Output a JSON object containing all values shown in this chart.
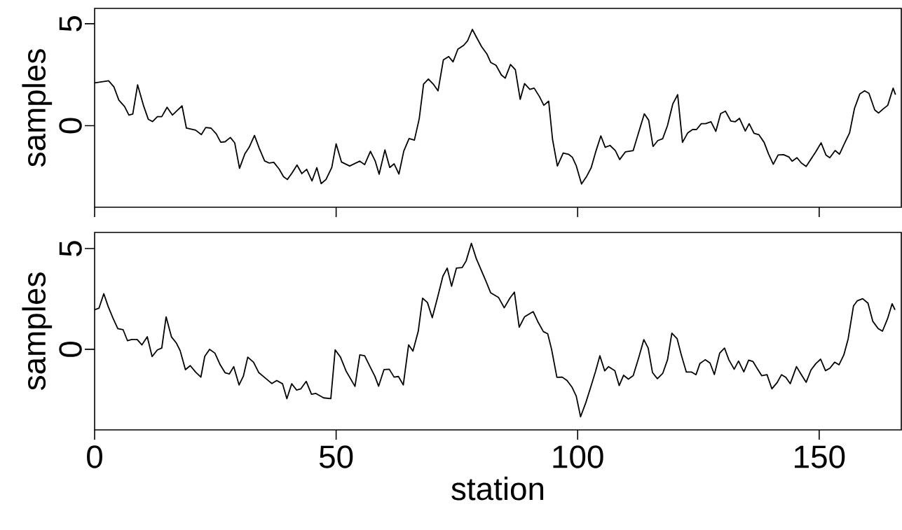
{
  "chart_data": [
    {
      "type": "line",
      "ylabel": "samples",
      "xlim": [
        0,
        167
      ],
      "ylim": [
        -4,
        5.75
      ],
      "xticks": [
        0,
        50,
        100,
        150
      ],
      "yticks": [
        0,
        5
      ],
      "tick_labels": "y",
      "series": [
        {
          "color": "#000000",
          "x": [
            0,
            2.9,
            4.0,
            5.0,
            6.2,
            7.1,
            7.9,
            8.9,
            10.1,
            11.1,
            12.0,
            13.0,
            13.9,
            15.0,
            16.1,
            18.1,
            19.0,
            20.9,
            22.1,
            23.0,
            24.1,
            25.2,
            26.1,
            27.0,
            28.1,
            29.0,
            30.0,
            31.1,
            32.0,
            33.1,
            34.1,
            35.2,
            36.1,
            37.1,
            38.2,
            39.1,
            39.9,
            40.9,
            41.9,
            42.9,
            43.9,
            45.0,
            46.0,
            46.9,
            47.9,
            49.1,
            50.0,
            51.1,
            52.8,
            54.9,
            55.9,
            57.1,
            58.1,
            58.9,
            60.1,
            61.1,
            62.0,
            63.0,
            64.0,
            65.1,
            66.2,
            67.2,
            68.1,
            69.1,
            70.2,
            71.1,
            72.2,
            73.3,
            74.2,
            75.2,
            76.4,
            77.2,
            78.2,
            79.0,
            80.1,
            81.2,
            82.0,
            83.1,
            84.2,
            85.0,
            86.1,
            87.1,
            88.1,
            89.0,
            90.1,
            91.0,
            92.1,
            93.0,
            94.0,
            94.8,
            95.8,
            97.0,
            98.1,
            98.9,
            99.7,
            100.8,
            101.9,
            102.8,
            103.7,
            104.8,
            105.7,
            106.7,
            107.8,
            108.7,
            109.9,
            111.5,
            112.6,
            113.8,
            114.7,
            115.6,
            116.6,
            117.6,
            118.6,
            119.7,
            120.7,
            121.7,
            122.8,
            123.8,
            124.6,
            125.6,
            126.5,
            127.6,
            128.6,
            129.6,
            130.6,
            131.7,
            132.6,
            133.5,
            134.7,
            135.5,
            136.5,
            137.5,
            138.6,
            139.5,
            140.5,
            141.5,
            142.6,
            143.7,
            144.4,
            145.4,
            146.3,
            147.3,
            148.3,
            149.3,
            150.4,
            151.4,
            152.2,
            153.3,
            154.2,
            155.2,
            156.3,
            157.3,
            158.4,
            159.4,
            160.3,
            161.5,
            162.3,
            163.2,
            164.2,
            165.3,
            165.8
          ],
          "values": [
            2.1,
            2.2,
            1.9,
            1.26,
            0.94,
            0.52,
            0.57,
            2.0,
            1.0,
            0.32,
            0.2,
            0.44,
            0.44,
            0.9,
            0.52,
            0.97,
            -0.12,
            -0.22,
            -0.44,
            -0.09,
            -0.12,
            -0.41,
            -0.81,
            -0.79,
            -0.58,
            -0.84,
            -2.09,
            -1.38,
            -1.06,
            -0.48,
            -1.12,
            -1.73,
            -1.83,
            -1.8,
            -2.13,
            -2.5,
            -2.64,
            -2.31,
            -1.93,
            -2.35,
            -2.14,
            -2.71,
            -2.06,
            -2.84,
            -2.64,
            -2.05,
            -0.89,
            -1.78,
            -1.98,
            -1.74,
            -1.91,
            -1.26,
            -1.74,
            -2.38,
            -1.19,
            -2.05,
            -1.87,
            -2.37,
            -1.25,
            -0.63,
            -0.71,
            0.34,
            2.04,
            2.29,
            2.01,
            1.71,
            3.23,
            3.39,
            3.13,
            3.75,
            3.94,
            4.16,
            4.72,
            4.36,
            3.88,
            3.52,
            3.1,
            2.96,
            2.49,
            2.33,
            3.0,
            2.74,
            1.29,
            2.06,
            1.78,
            1.84,
            1.42,
            1.0,
            1.2,
            -0.67,
            -1.98,
            -1.34,
            -1.4,
            -1.55,
            -1.96,
            -2.86,
            -2.47,
            -2.06,
            -1.31,
            -0.5,
            -1.06,
            -0.97,
            -1.22,
            -1.66,
            -1.28,
            -1.22,
            -0.35,
            0.58,
            0.27,
            -1.02,
            -0.73,
            -0.64,
            0.01,
            1.07,
            1.52,
            -0.82,
            -0.35,
            -0.19,
            -0.19,
            0.1,
            0.1,
            0.19,
            -0.28,
            0.59,
            0.71,
            0.23,
            0.19,
            0.36,
            -0.26,
            0.1,
            -0.37,
            -0.44,
            -0.82,
            -1.38,
            -1.89,
            -1.44,
            -1.42,
            -1.53,
            -1.74,
            -1.57,
            -1.83,
            -2.0,
            -1.64,
            -1.28,
            -0.84,
            -1.44,
            -1.57,
            -1.22,
            -1.4,
            -0.89,
            -0.35,
            0.84,
            1.55,
            1.71,
            1.59,
            0.77,
            0.62,
            0.81,
            1.0,
            1.84,
            1.52
          ]
        }
      ]
    },
    {
      "type": "line",
      "ylabel": "samples",
      "xlabel": "station",
      "xlim": [
        0,
        167
      ],
      "ylim": [
        -4,
        5.8
      ],
      "xticks": [
        0,
        50,
        100,
        150
      ],
      "yticks": [
        0,
        5
      ],
      "series": [
        {
          "color": "#000000",
          "x": [
            0,
            0.9,
            1.9,
            2.8,
            3.8,
            4.8,
            5.9,
            6.8,
            7.7,
            8.8,
            9.8,
            10.9,
            11.9,
            13.0,
            13.9,
            14.8,
            15.9,
            16.9,
            17.7,
            18.8,
            19.8,
            20.9,
            22.0,
            22.8,
            23.8,
            24.9,
            26.0,
            27.0,
            27.9,
            28.8,
            29.9,
            30.8,
            31.7,
            32.9,
            34.0,
            35.1,
            36.7,
            37.7,
            38.9,
            39.8,
            40.8,
            41.8,
            42.7,
            43.8,
            44.9,
            45.8,
            47.4,
            48.9,
            49.8,
            50.9,
            52.1,
            53.9,
            54.9,
            55.9,
            57.1,
            58.0,
            58.8,
            59.9,
            61.0,
            62.0,
            62.9,
            63.9,
            65.0,
            65.9,
            67.0,
            67.9,
            68.9,
            69.9,
            71.0,
            72.1,
            73.0,
            73.9,
            74.9,
            76.1,
            76.9,
            78.0,
            79.0,
            80.1,
            81.0,
            82.0,
            83.6,
            84.8,
            86.0,
            86.9,
            87.9,
            89.0,
            90.8,
            91.8,
            92.9,
            93.8,
            94.6,
            95.7,
            96.8,
            97.8,
            98.8,
            99.7,
            100.6,
            101.7,
            102.8,
            103.7,
            104.6,
            105.6,
            106.4,
            107.7,
            108.6,
            109.5,
            110.5,
            111.5,
            112.6,
            113.7,
            114.6,
            115.5,
            116.5,
            117.6,
            118.6,
            119.5,
            120.6,
            121.5,
            122.5,
            123.6,
            124.5,
            125.3,
            126.4,
            127.4,
            128.3,
            129.4,
            130.4,
            131.3,
            132.4,
            133.3,
            134.4,
            135.4,
            136.3,
            137.2,
            138.1,
            139.2,
            140.2,
            141.3,
            142.2,
            143.1,
            144.0,
            145.3,
            146.2,
            147.3,
            148.3,
            149.3,
            150.3,
            151.3,
            152.2,
            153.2,
            154.1,
            155.1,
            156.0,
            157.1,
            157.9,
            159.0,
            160.1,
            161.1,
            162.2,
            163.1,
            164.2,
            165.1,
            165.7
          ],
          "values": [
            1.96,
            2.04,
            2.76,
            2.13,
            1.55,
            1.03,
            0.97,
            0.43,
            0.49,
            0.49,
            0.22,
            0.62,
            -0.36,
            -0.03,
            0.06,
            1.61,
            0.62,
            0.32,
            -0.06,
            -1.01,
            -0.81,
            -1.13,
            -1.38,
            -0.35,
            0.0,
            -0.19,
            -0.77,
            -1.16,
            -1.22,
            -0.86,
            -1.77,
            -1.33,
            -0.39,
            -0.64,
            -1.16,
            -1.38,
            -1.7,
            -1.55,
            -1.71,
            -2.45,
            -1.71,
            -2.02,
            -1.96,
            -1.59,
            -2.23,
            -2.19,
            -2.41,
            -2.45,
            -0.03,
            -0.39,
            -1.1,
            -1.84,
            -0.28,
            -0.32,
            -0.9,
            -1.33,
            -1.83,
            -1.01,
            -0.99,
            -1.38,
            -1.35,
            -1.77,
            0.22,
            -0.09,
            0.9,
            2.54,
            2.32,
            1.57,
            2.58,
            3.63,
            4.03,
            3.13,
            4.03,
            4.06,
            4.38,
            5.26,
            4.51,
            3.89,
            3.39,
            2.8,
            2.58,
            2.06,
            2.55,
            2.84,
            1.1,
            1.61,
            1.87,
            1.35,
            0.88,
            0.77,
            0.0,
            -1.39,
            -1.38,
            -1.55,
            -1.87,
            -2.32,
            -3.35,
            -2.64,
            -1.8,
            -1.1,
            -0.32,
            -1.07,
            -0.86,
            -1.06,
            -1.8,
            -1.29,
            -1.48,
            -1.31,
            -0.45,
            0.48,
            0.06,
            -1.16,
            -1.46,
            -1.2,
            -0.52,
            0.8,
            0.52,
            -0.32,
            -1.13,
            -1.13,
            -1.26,
            -0.71,
            -0.52,
            -0.68,
            -1.25,
            -0.19,
            0.06,
            -0.52,
            -0.99,
            -0.58,
            -1.12,
            -0.54,
            -0.61,
            -0.97,
            -1.31,
            -1.26,
            -1.96,
            -1.65,
            -1.26,
            -1.39,
            -1.71,
            -0.86,
            -1.22,
            -1.64,
            -1.03,
            -0.71,
            -0.49,
            -1.06,
            -0.94,
            -0.64,
            -0.77,
            -0.28,
            0.52,
            2.15,
            2.41,
            2.51,
            2.29,
            1.39,
            1.03,
            0.9,
            1.55,
            2.26,
            1.96
          ]
        }
      ]
    }
  ]
}
